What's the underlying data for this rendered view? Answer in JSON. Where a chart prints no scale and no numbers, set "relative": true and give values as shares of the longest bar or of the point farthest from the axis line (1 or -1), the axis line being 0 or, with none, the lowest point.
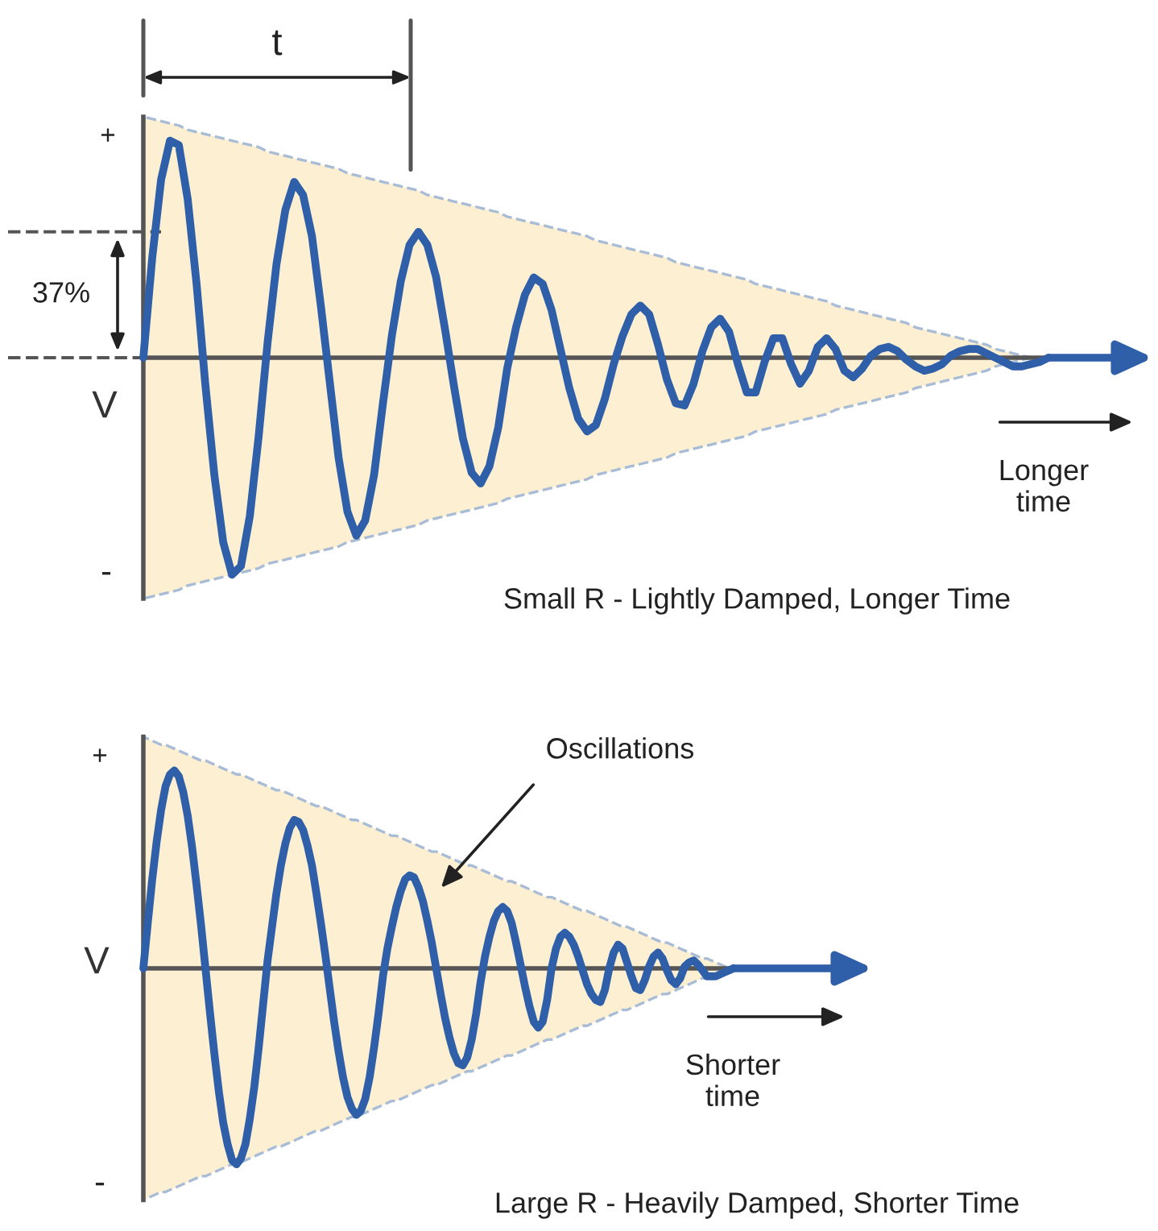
{
  "chart_data": [
    {
      "type": "line",
      "relative": true,
      "ylabel": "V",
      "categories": [
        null,
        null,
        null,
        null,
        null,
        null,
        null,
        null,
        null,
        null,
        null,
        null,
        null,
        null,
        null,
        null,
        null,
        null,
        null,
        null,
        null,
        null,
        null,
        null,
        null,
        null,
        null,
        null,
        null,
        null,
        null,
        null,
        null,
        null,
        null,
        null,
        null,
        null,
        null,
        null,
        null,
        null,
        null,
        null,
        null,
        null,
        null,
        null,
        null,
        null,
        null,
        null,
        null,
        null,
        null,
        null,
        null,
        null,
        null,
        null,
        null,
        null,
        null,
        null,
        null,
        null,
        null,
        null,
        null,
        null,
        null,
        null,
        null,
        null,
        null,
        null,
        null,
        null,
        null,
        null,
        null,
        null,
        null,
        null,
        null,
        null,
        null,
        null,
        null,
        null,
        null,
        null,
        null,
        null,
        null,
        null,
        null,
        null,
        null,
        null,
        null,
        null,
        null
      ],
      "series": [
        {
          "color": "#2e5fa8",
          "values": [
            0,
            0.46,
            0.82,
            1.0,
            0.98,
            0.73,
            0.34,
            -0.13,
            -0.54,
            -0.85,
            -1.0,
            -0.96,
            -0.73,
            -0.36,
            0.07,
            0.43,
            0.68,
            0.81,
            0.75,
            0.56,
            0.24,
            -0.11,
            -0.46,
            -0.71,
            -0.82,
            -0.75,
            -0.54,
            -0.21,
            0.1,
            0.35,
            0.52,
            0.58,
            0.52,
            0.37,
            0.13,
            -0.13,
            -0.37,
            -0.53,
            -0.58,
            -0.5,
            -0.32,
            -0.05,
            0.14,
            0.29,
            0.37,
            0.34,
            0.22,
            0.04,
            -0.14,
            -0.28,
            -0.34,
            -0.31,
            -0.19,
            -0.03,
            0.1,
            0.2,
            0.24,
            0.2,
            0.06,
            -0.1,
            -0.21,
            -0.22,
            -0.12,
            0.03,
            0.14,
            0.18,
            0.12,
            -0.03,
            -0.16,
            -0.16,
            -0.02,
            0.09,
            0.09,
            -0.03,
            -0.12,
            -0.06,
            0.05,
            0.09,
            0.04,
            -0.06,
            -0.09,
            -0.05,
            0.01,
            0.04,
            0.05,
            0.03,
            -0.01,
            -0.04,
            -0.06,
            -0.05,
            -0.03,
            0.01,
            0.03,
            0.04,
            0.04,
            0.02,
            0,
            -0.02,
            -0.04,
            -0.04,
            -0.03,
            -0.02,
            0
          ],
          "upper": [
            1.11,
            1.1,
            1.09,
            1.08,
            1.07,
            1.05,
            1.04,
            1.03,
            1.02,
            1.01,
            1.0,
            0.99,
            0.98,
            0.97,
            0.95,
            0.94,
            0.93,
            0.92,
            0.91,
            0.9,
            0.89,
            0.88,
            0.87,
            0.85,
            0.84,
            0.83,
            0.82,
            0.81,
            0.8,
            0.79,
            0.78,
            0.77,
            0.75,
            0.74,
            0.73,
            0.72,
            0.71,
            0.7,
            0.69,
            0.68,
            0.67,
            0.65,
            0.64,
            0.63,
            0.62,
            0.61,
            0.6,
            0.59,
            0.58,
            0.57,
            0.56,
            0.54,
            0.53,
            0.52,
            0.51,
            0.5,
            0.49,
            0.48,
            0.47,
            0.46,
            0.44,
            0.43,
            0.42,
            0.41,
            0.4,
            0.39,
            0.38,
            0.37,
            0.36,
            0.34,
            0.33,
            0.32,
            0.31,
            0.3,
            0.29,
            0.28,
            0.27,
            0.26,
            0.24,
            0.23,
            0.22,
            0.21,
            0.2,
            0.19,
            0.18,
            0.17,
            0.16,
            0.14,
            0.13,
            0.12,
            0.11,
            0.1,
            0.09,
            0.08,
            0.07,
            0.06,
            0.04,
            0.03,
            0.02,
            0.01,
            0,
            0,
            0
          ],
          "lower": [
            -1.11,
            -1.1,
            -1.09,
            -1.08,
            -1.07,
            -1.05,
            -1.04,
            -1.03,
            -1.02,
            -1.01,
            -1.0,
            -0.99,
            -0.98,
            -0.97,
            -0.95,
            -0.94,
            -0.93,
            -0.92,
            -0.91,
            -0.9,
            -0.89,
            -0.88,
            -0.87,
            -0.85,
            -0.84,
            -0.83,
            -0.82,
            -0.81,
            -0.8,
            -0.79,
            -0.78,
            -0.77,
            -0.75,
            -0.74,
            -0.73,
            -0.72,
            -0.71,
            -0.7,
            -0.69,
            -0.68,
            -0.67,
            -0.65,
            -0.64,
            -0.63,
            -0.62,
            -0.61,
            -0.6,
            -0.59,
            -0.58,
            -0.57,
            -0.56,
            -0.54,
            -0.53,
            -0.52,
            -0.51,
            -0.5,
            -0.49,
            -0.48,
            -0.47,
            -0.46,
            -0.44,
            -0.43,
            -0.42,
            -0.41,
            -0.4,
            -0.39,
            -0.38,
            -0.37,
            -0.36,
            -0.34,
            -0.33,
            -0.32,
            -0.31,
            -0.3,
            -0.29,
            -0.28,
            -0.27,
            -0.26,
            -0.24,
            -0.23,
            -0.22,
            -0.21,
            -0.2,
            -0.19,
            -0.18,
            -0.17,
            -0.16,
            -0.14,
            -0.13,
            -0.12,
            -0.11,
            -0.1,
            -0.09,
            -0.08,
            -0.07,
            -0.06,
            -0.04,
            -0.03,
            -0.02,
            -0.01,
            0,
            0,
            0
          ]
        }
      ],
      "annotations": [
        "t",
        "+",
        "37%",
        "-",
        "Longer\ntime",
        "Small R - Lightly Damped, Longer Time"
      ]
    },
    {
      "type": "line",
      "relative": true,
      "ylabel": "V",
      "categories": [
        null,
        null,
        null,
        null,
        null,
        null,
        null,
        null,
        null,
        null,
        null,
        null,
        null,
        null,
        null,
        null,
        null,
        null,
        null,
        null,
        null,
        null,
        null,
        null,
        null,
        null,
        null,
        null,
        null,
        null,
        null,
        null,
        null,
        null,
        null,
        null,
        null,
        null,
        null,
        null,
        null,
        null,
        null,
        null,
        null,
        null,
        null,
        null,
        null,
        null,
        null,
        null,
        null,
        null,
        null,
        null,
        null,
        null,
        null,
        null,
        null,
        null,
        null,
        null,
        null,
        null,
        null,
        null,
        null,
        null,
        null,
        null,
        null,
        null,
        null,
        null,
        null,
        null,
        null,
        null,
        null,
        null,
        null,
        null,
        null,
        null,
        null,
        null,
        null,
        null,
        null,
        null,
        null,
        null,
        null,
        null,
        null,
        null,
        null,
        null,
        null,
        null,
        null,
        null,
        null,
        null,
        null,
        null,
        null,
        null,
        null,
        null,
        null,
        null,
        null,
        null,
        null,
        null,
        null,
        null,
        null,
        null,
        null,
        null,
        null,
        null,
        null,
        null,
        null,
        null,
        null,
        null,
        null,
        null
      ],
      "series": [
        {
          "color": "#2e5fa8",
          "values": [
            0,
            0.23,
            0.45,
            0.64,
            0.8,
            0.92,
            0.98,
            1.0,
            0.97,
            0.89,
            0.77,
            0.61,
            0.42,
            0.22,
            0,
            -0.22,
            -0.43,
            -0.62,
            -0.78,
            -0.89,
            -0.97,
            -0.99,
            -0.96,
            -0.89,
            -0.76,
            -0.6,
            -0.4,
            -0.18,
            0.04,
            0.21,
            0.38,
            0.52,
            0.63,
            0.71,
            0.75,
            0.74,
            0.7,
            0.62,
            0.52,
            0.38,
            0.23,
            0.07,
            -0.1,
            -0.27,
            -0.42,
            -0.55,
            -0.65,
            -0.71,
            -0.74,
            -0.72,
            -0.66,
            -0.55,
            -0.4,
            -0.23,
            -0.04,
            0.1,
            0.21,
            0.31,
            0.39,
            0.45,
            0.47,
            0.46,
            0.41,
            0.34,
            0.24,
            0.13,
            0,
            -0.13,
            -0.25,
            -0.35,
            -0.43,
            -0.48,
            -0.49,
            -0.45,
            -0.36,
            -0.23,
            -0.07,
            0.06,
            0.16,
            0.24,
            0.29,
            0.31,
            0.29,
            0.23,
            0.13,
            0.02,
            -0.09,
            -0.19,
            -0.27,
            -0.3,
            -0.27,
            -0.16,
            0,
            0.1,
            0.16,
            0.18,
            0.16,
            0.12,
            0.06,
            -0.01,
            -0.08,
            -0.13,
            -0.16,
            -0.17,
            -0.11,
            0,
            0.08,
            0.12,
            0.1,
            0.03,
            -0.04,
            -0.1,
            -0.11,
            -0.06,
            0.01,
            0.06,
            0.08,
            0.05,
            -0.01,
            -0.06,
            -0.08,
            -0.05,
            0.01,
            0.03,
            0.04,
            0.02,
            -0.01,
            -0.04,
            -0.04,
            -0.04,
            -0.03,
            -0.02,
            -0.01,
            0
          ],
          "upper": [
            1.17,
            1.16,
            1.15,
            1.14,
            1.13,
            1.13,
            1.12,
            1.11,
            1.1,
            1.09,
            1.08,
            1.07,
            1.06,
            1.05,
            1.05,
            1.04,
            1.03,
            1.02,
            1.01,
            1.0,
            0.99,
            0.98,
            0.98,
            0.97,
            0.96,
            0.95,
            0.94,
            0.93,
            0.92,
            0.91,
            0.9,
            0.9,
            0.89,
            0.88,
            0.87,
            0.86,
            0.85,
            0.84,
            0.83,
            0.82,
            0.82,
            0.81,
            0.8,
            0.79,
            0.78,
            0.77,
            0.76,
            0.75,
            0.75,
            0.74,
            0.73,
            0.72,
            0.71,
            0.7,
            0.69,
            0.68,
            0.67,
            0.67,
            0.66,
            0.65,
            0.64,
            0.63,
            0.62,
            0.61,
            0.6,
            0.59,
            0.59,
            0.58,
            0.57,
            0.56,
            0.55,
            0.54,
            0.53,
            0.52,
            0.52,
            0.51,
            0.5,
            0.49,
            0.48,
            0.47,
            0.46,
            0.45,
            0.44,
            0.44,
            0.43,
            0.42,
            0.41,
            0.4,
            0.39,
            0.38,
            0.37,
            0.36,
            0.36,
            0.35,
            0.34,
            0.33,
            0.32,
            0.31,
            0.3,
            0.29,
            0.29,
            0.28,
            0.27,
            0.26,
            0.25,
            0.24,
            0.23,
            0.22,
            0.21,
            0.21,
            0.2,
            0.19,
            0.18,
            0.17,
            0.16,
            0.15,
            0.14,
            0.13,
            0.13,
            0.12,
            0.11,
            0.1,
            0.09,
            0.08,
            0.07,
            0.06,
            0.05,
            0.05,
            0.04,
            0.03,
            0.02,
            0.01,
            0,
            0
          ],
          "lower": [
            -1.17,
            -1.16,
            -1.15,
            -1.14,
            -1.13,
            -1.13,
            -1.12,
            -1.11,
            -1.1,
            -1.09,
            -1.08,
            -1.07,
            -1.06,
            -1.05,
            -1.05,
            -1.04,
            -1.03,
            -1.02,
            -1.01,
            -1.0,
            -0.99,
            -0.98,
            -0.98,
            -0.97,
            -0.96,
            -0.95,
            -0.94,
            -0.93,
            -0.92,
            -0.91,
            -0.9,
            -0.9,
            -0.89,
            -0.88,
            -0.87,
            -0.86,
            -0.85,
            -0.84,
            -0.83,
            -0.82,
            -0.82,
            -0.81,
            -0.8,
            -0.79,
            -0.78,
            -0.77,
            -0.76,
            -0.75,
            -0.75,
            -0.74,
            -0.73,
            -0.72,
            -0.71,
            -0.7,
            -0.69,
            -0.68,
            -0.67,
            -0.67,
            -0.66,
            -0.65,
            -0.64,
            -0.63,
            -0.62,
            -0.61,
            -0.6,
            -0.59,
            -0.59,
            -0.58,
            -0.57,
            -0.56,
            -0.55,
            -0.54,
            -0.53,
            -0.52,
            -0.52,
            -0.51,
            -0.5,
            -0.49,
            -0.48,
            -0.47,
            -0.46,
            -0.45,
            -0.44,
            -0.44,
            -0.43,
            -0.42,
            -0.41,
            -0.4,
            -0.39,
            -0.38,
            -0.37,
            -0.36,
            -0.36,
            -0.35,
            -0.34,
            -0.33,
            -0.32,
            -0.31,
            -0.3,
            -0.29,
            -0.29,
            -0.28,
            -0.27,
            -0.26,
            -0.25,
            -0.24,
            -0.23,
            -0.22,
            -0.21,
            -0.21,
            -0.2,
            -0.19,
            -0.18,
            -0.17,
            -0.16,
            -0.15,
            -0.14,
            -0.13,
            -0.13,
            -0.12,
            -0.11,
            -0.1,
            -0.09,
            -0.08,
            -0.07,
            -0.06,
            -0.05,
            -0.05,
            -0.04,
            -0.03,
            -0.02,
            -0.01,
            0,
            0
          ]
        }
      ],
      "annotations": [
        "+",
        "Oscillations",
        "-",
        "Shorter\ntime",
        "Large R - Heavily Damped, Shorter Time"
      ]
    }
  ]
}
